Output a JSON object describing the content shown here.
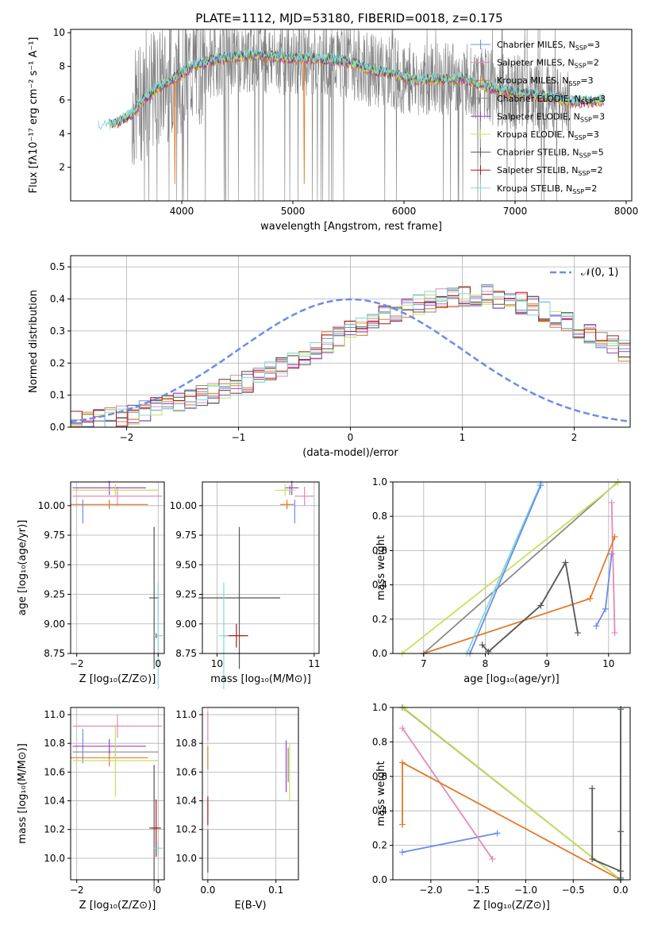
{
  "colors": {
    "Chabrier MILES": "#6a8ee8",
    "Salpeter MILES": "#e688b8",
    "Kroupa MILES": "#e07a2a",
    "Chabrier ELODIE": "#8a8a8a",
    "Salpeter ELODIE": "#9b40c8",
    "Kroupa ELODIE": "#c8e05a",
    "Chabrier STELIB": "#555555",
    "Salpeter STELIB": "#b01818",
    "Kroupa STELIB": "#80d8d8",
    "normal_curve": "#6a8ee8"
  },
  "chart_data": [
    {
      "type": "line",
      "panel": "spectrum",
      "title": "PLATE=1112, MJD=53180, FIBERID=0018, z=0.175",
      "xlabel": "wavelength [Angstrom, rest frame]",
      "ylabel": "Flux [fλ10⁻¹⁷ erg cm⁻² s⁻¹ A⁻¹]",
      "xlim": [
        3000,
        8050
      ],
      "ylim": [
        0,
        10.2
      ],
      "xticks": [
        "4000",
        "5000",
        "6000",
        "7000",
        "8000"
      ],
      "yticks": [
        "2",
        "4",
        "6",
        "8",
        "10"
      ],
      "legend_position": "upper right",
      "legend": [
        {
          "label": "Chabrier MILES, N",
          "sub": "SSP",
          "suffix": "=3"
        },
        {
          "label": "Salpeter MILES, N",
          "sub": "SSP",
          "suffix": "=2"
        },
        {
          "label": "Kroupa MILES, N",
          "sub": "SSP",
          "suffix": "=3"
        },
        {
          "label": "Chabrier ELODIE, N",
          "sub": "SSP",
          "suffix": "=3"
        },
        {
          "label": "Salpeter ELODIE, N",
          "sub": "SSP",
          "suffix": "=3"
        },
        {
          "label": "Kroupa ELODIE, N",
          "sub": "SSP",
          "suffix": "=3"
        },
        {
          "label": "Chabrier STELIB, N",
          "sub": "SSP",
          "suffix": "=5"
        },
        {
          "label": "Salpeter STELIB, N",
          "sub": "SSP",
          "suffix": "=2"
        },
        {
          "label": "Kroupa STELIB, N",
          "sub": "SSP",
          "suffix": "=2"
        }
      ],
      "model_continuum": {
        "x": [
          3250,
          3400,
          3550,
          3650,
          3800,
          3950,
          4100,
          4300,
          4500,
          4700,
          4900,
          5100,
          5300,
          5500,
          5700,
          5900,
          6100,
          6300,
          6500,
          6700,
          6900,
          7100,
          7300,
          7500,
          7700,
          7800
        ],
        "y": [
          4.4,
          4.6,
          5.2,
          6.0,
          6.8,
          7.4,
          8.0,
          8.4,
          8.6,
          8.7,
          8.5,
          8.5,
          8.4,
          8.3,
          7.8,
          7.6,
          7.2,
          7.2,
          7.3,
          6.9,
          6.5,
          6.4,
          6.2,
          5.9,
          5.9,
          6.0
        ]
      },
      "data_span": [
        3550,
        7500
      ]
    },
    {
      "type": "step",
      "panel": "residual histogram",
      "title": "",
      "xlabel": "(data-model)/error",
      "ylabel": "Normed distribution",
      "xlim": [
        -2.5,
        2.5
      ],
      "ylim": [
        0,
        0.535
      ],
      "xticks": [
        "−2",
        "−1",
        "0",
        "1",
        "2"
      ],
      "yticks": [
        "0.0",
        "0.1",
        "0.2",
        "0.3",
        "0.4",
        "0.5"
      ],
      "grid": true,
      "legend": [
        {
          "label": "𝒩(0, 1)"
        }
      ],
      "legend_position": "upper right",
      "bin_width": 0.1,
      "bin_start": -2.5,
      "histogram": [
        0.02,
        0.022,
        0.025,
        0.03,
        0.035,
        0.042,
        0.05,
        0.058,
        0.066,
        0.075,
        0.085,
        0.095,
        0.106,
        0.118,
        0.13,
        0.142,
        0.156,
        0.172,
        0.19,
        0.21,
        0.228,
        0.246,
        0.264,
        0.282,
        0.3,
        0.318,
        0.33,
        0.345,
        0.36,
        0.372,
        0.382,
        0.392,
        0.4,
        0.405,
        0.41,
        0.412,
        0.41,
        0.405,
        0.398,
        0.388,
        0.376,
        0.362,
        0.346,
        0.33,
        0.312,
        0.294,
        0.276,
        0.258,
        0.24
      ]
    },
    {
      "type": "scatter",
      "panel": "age vs Z",
      "xlabel": "Z [log₁₀(Z/Z⊙)]",
      "ylabel": "age  [log₁₀(age/yr)]",
      "xlim": [
        -2.15,
        0.15
      ],
      "ylim": [
        8.75,
        10.2
      ],
      "xticks": [
        "−2",
        "0"
      ],
      "yticks": [
        "8.75",
        "9.00",
        "9.25",
        "9.50",
        "9.75",
        "10.00"
      ],
      "points": [
        {
          "model": "Chabrier MILES",
          "x": -1.85,
          "y": 9.95,
          "xerr": 0.0,
          "yerr": 0.1
        },
        {
          "model": "Salpeter MILES",
          "x": -1.0,
          "y": 10.08,
          "xerr": 1.1,
          "yerr": 0.08
        },
        {
          "model": "Kroupa MILES",
          "x": -1.2,
          "y": 10.01,
          "xerr": 0.95,
          "yerr": 0.04
        },
        {
          "model": "Chabrier ELODIE",
          "x": -1.05,
          "y": 10.13,
          "xerr": 1.05,
          "yerr": 0.04
        },
        {
          "model": "Salpeter ELODIE",
          "x": -1.2,
          "y": 10.15,
          "xerr": 0.9,
          "yerr": 0.06
        },
        {
          "model": "Kroupa ELODIE",
          "x": -1.05,
          "y": 10.13,
          "xerr": 1.05,
          "yerr": 0.05
        },
        {
          "model": "Chabrier STELIB",
          "x": -0.1,
          "y": 9.22,
          "xerr": 0.12,
          "yerr": 0.6
        },
        {
          "model": "Salpeter STELIB",
          "x": -0.05,
          "y": 8.9,
          "xerr": 0.05,
          "yerr": 0.02
        },
        {
          "model": "Kroupa STELIB",
          "x": 0.0,
          "y": 8.9,
          "xerr": 0.12,
          "yerr": 0.45
        }
      ]
    },
    {
      "type": "scatter",
      "panel": "age vs mass",
      "xlabel": "mass [log₁₀(M/M⊙)]",
      "ylabel": "",
      "xlim": [
        9.85,
        11.05
      ],
      "ylim": [
        8.75,
        10.2
      ],
      "xticks": [
        "10",
        "11"
      ],
      "yticks": [
        "8.75",
        "9.00",
        "9.25",
        "9.50",
        "9.75",
        "10.00"
      ],
      "points": [
        {
          "model": "Chabrier MILES",
          "x": 10.8,
          "y": 9.95,
          "xerr": 0.0,
          "yerr": 0.1
        },
        {
          "model": "Salpeter MILES",
          "x": 10.9,
          "y": 10.08,
          "xerr": 0.1,
          "yerr": 0.08
        },
        {
          "model": "Kroupa MILES",
          "x": 10.72,
          "y": 10.01,
          "xerr": 0.07,
          "yerr": 0.04
        },
        {
          "model": "Chabrier ELODIE",
          "x": 10.75,
          "y": 10.13,
          "xerr": 0.05,
          "yerr": 0.04
        },
        {
          "model": "Salpeter ELODIE",
          "x": 10.77,
          "y": 10.15,
          "xerr": 0.07,
          "yerr": 0.06
        },
        {
          "model": "Kroupa ELODIE",
          "x": 10.7,
          "y": 10.13,
          "xerr": 0.1,
          "yerr": 0.05
        },
        {
          "model": "Chabrier STELIB",
          "x": 10.23,
          "y": 9.22,
          "xerr": 0.42,
          "yerr": 0.6
        },
        {
          "model": "Salpeter STELIB",
          "x": 10.2,
          "y": 8.9,
          "xerr": 0.12,
          "yerr": 0.1
        },
        {
          "model": "Kroupa STELIB",
          "x": 10.07,
          "y": 8.9,
          "xerr": 0.05,
          "yerr": 0.45
        }
      ]
    },
    {
      "type": "line",
      "panel": "mass weight vs age",
      "xlabel": "age  [log₁₀(age/yr)]",
      "ylabel": "mass weight",
      "xlim": [
        6.5,
        10.35
      ],
      "ylim": [
        0,
        1.0
      ],
      "xticks": [
        "7",
        "8",
        "9",
        "10"
      ],
      "yticks": [
        "0.0",
        "0.2",
        "0.4",
        "0.6",
        "0.8",
        "1.0"
      ],
      "series": [
        {
          "model": "Chabrier MILES",
          "x": [
            9.8,
            9.95,
            10.05
          ],
          "y": [
            0.16,
            0.26,
            0.58
          ]
        },
        {
          "model": "Salpeter MILES",
          "x": [
            10.05,
            10.1
          ],
          "y": [
            0.88,
            0.12
          ]
        },
        {
          "model": "Kroupa MILES",
          "x": [
            7.0,
            9.7,
            10.1
          ],
          "y": [
            0.0,
            0.32,
            0.68
          ]
        },
        {
          "model": "Chabrier ELODIE",
          "x": [
            7.0,
            10.15
          ],
          "y": [
            0.0,
            1.0
          ]
        },
        {
          "model": "Kroupa ELODIE",
          "x": [
            6.65,
            10.15
          ],
          "y": [
            0.0,
            0.995
          ]
        },
        {
          "model": "Chabrier STELIB",
          "x": [
            7.95,
            8.05,
            8.9,
            9.3,
            9.5
          ],
          "y": [
            0.05,
            0.01,
            0.28,
            0.53,
            0.12
          ]
        },
        {
          "model": "Kroupa STELIB",
          "x": [
            7.7,
            8.9
          ],
          "y": [
            0.0,
            0.99
          ]
        },
        {
          "model": "Chabrier MILES",
          "x": [
            7.75,
            8.9
          ],
          "y": [
            0.0,
            0.98
          ]
        }
      ]
    },
    {
      "type": "scatter",
      "panel": "mass vs Z",
      "xlabel": "Z [log₁₀(Z/Z⊙)]",
      "ylabel": "mass [log₁₀(M/M⊙)]",
      "xlim": [
        -2.15,
        0.15
      ],
      "ylim": [
        9.85,
        11.05
      ],
      "xticks": [
        "−2",
        "0"
      ],
      "yticks": [
        "10.0",
        "10.2",
        "10.4",
        "10.6",
        "10.8",
        "11.0"
      ],
      "points": [
        {
          "model": "Chabrier MILES",
          "x": -1.85,
          "y": 10.78,
          "xerr": 0.0,
          "yerr": 0.12
        },
        {
          "model": "Salpeter MILES",
          "x": -1.0,
          "y": 10.92,
          "xerr": 1.1,
          "yerr": 0.08
        },
        {
          "model": "Kroupa MILES",
          "x": -1.2,
          "y": 10.7,
          "xerr": 0.95,
          "yerr": 0.06
        },
        {
          "model": "Chabrier ELODIE",
          "x": -1.05,
          "y": 10.74,
          "xerr": 1.05,
          "yerr": 0.04
        },
        {
          "model": "Salpeter ELODIE",
          "x": -1.2,
          "y": 10.78,
          "xerr": 0.9,
          "yerr": 0.05
        },
        {
          "model": "Kroupa ELODIE",
          "x": -1.05,
          "y": 10.68,
          "xerr": 1.05,
          "yerr": 0.25
        },
        {
          "model": "Chabrier STELIB",
          "x": -0.1,
          "y": 10.21,
          "xerr": 0.12,
          "yerr": 0.44
        },
        {
          "model": "Salpeter STELIB",
          "x": -0.05,
          "y": 10.21,
          "xerr": 0.12,
          "yerr": 0.2
        },
        {
          "model": "Kroupa STELIB",
          "x": 0.0,
          "y": 10.07,
          "xerr": 0.12,
          "yerr": 0.05
        }
      ]
    },
    {
      "type": "scatter",
      "panel": "mass vs E(B-V)",
      "xlabel": "E(B-V)",
      "ylabel": "",
      "xlim": [
        -0.008,
        0.133
      ],
      "ylim": [
        9.85,
        11.05
      ],
      "xticks": [
        "0.0",
        "0.1"
      ],
      "yticks": [
        "10.0",
        "10.2",
        "10.4",
        "10.6",
        "10.8",
        "11.0"
      ],
      "points": [
        {
          "model": "Salpeter MILES",
          "x": 0.0,
          "y": 10.92,
          "xerr": 0.0,
          "yerr": 0.1
        },
        {
          "model": "Kroupa MILES",
          "x": 0.0,
          "y": 10.7,
          "xerr": 0.0,
          "yerr": 0.08
        },
        {
          "model": "Salpeter STELIB",
          "x": 0.0,
          "y": 10.33,
          "xerr": 0.0,
          "yerr": 0.1
        },
        {
          "model": "Kroupa STELIB",
          "x": 0.0,
          "y": 10.07,
          "xerr": 0.0,
          "yerr": 0.1
        },
        {
          "model": "Chabrier STELIB",
          "x": 0.0,
          "y": 10.05,
          "xerr": 0.0,
          "yerr": 0.15
        },
        {
          "model": "Salpeter ELODIE",
          "x": 0.115,
          "y": 10.64,
          "xerr": 0.0,
          "yerr": 0.18
        },
        {
          "model": "Kroupa ELODIE",
          "x": 0.12,
          "y": 10.6,
          "xerr": 0.0,
          "yerr": 0.2
        },
        {
          "model": "Chabrier ELODIE",
          "x": 0.118,
          "y": 10.65,
          "xerr": 0.0,
          "yerr": 0.12
        }
      ]
    },
    {
      "type": "line",
      "panel": "mass weight vs Z",
      "xlabel": "Z [log₁₀(Z/Z⊙)]",
      "ylabel": "mass weight",
      "xlim": [
        -2.4,
        0.1
      ],
      "ylim": [
        0,
        1.0
      ],
      "xticks": [
        "−2.0",
        "−1.5",
        "−1.0",
        "−0.5",
        "0.0"
      ],
      "yticks": [
        "0.0",
        "0.2",
        "0.4",
        "0.6",
        "0.8",
        "1.0"
      ],
      "series": [
        {
          "model": "Chabrier MILES",
          "x": [
            -2.3,
            -1.3
          ],
          "y": [
            0.16,
            0.27
          ]
        },
        {
          "model": "Salpeter MILES",
          "x": [
            -2.3,
            -1.35
          ],
          "y": [
            0.88,
            0.12
          ]
        },
        {
          "model": "Kroupa MILES",
          "x": [
            -2.3,
            -2.3,
            0.0
          ],
          "y": [
            0.32,
            0.68,
            0.0
          ]
        },
        {
          "model": "Chabrier ELODIE",
          "x": [
            -2.3,
            0.0
          ],
          "y": [
            1.0,
            0.0
          ]
        },
        {
          "model": "Kroupa ELODIE",
          "x": [
            -2.28,
            0.0
          ],
          "y": [
            0.995,
            0.0
          ]
        },
        {
          "model": "Chabrier STELIB",
          "x": [
            -0.3,
            -0.3,
            0.0,
            0.0
          ],
          "y": [
            0.53,
            0.12,
            0.05,
            0.28
          ]
        },
        {
          "model": "Kroupa STELIB",
          "x": [
            0.0,
            0.0
          ],
          "y": [
            0.99,
            0.0
          ]
        },
        {
          "model": "Chabrier STELIB",
          "x": [
            0.0,
            0.0
          ],
          "y": [
            0.99,
            0.01
          ]
        }
      ]
    }
  ]
}
